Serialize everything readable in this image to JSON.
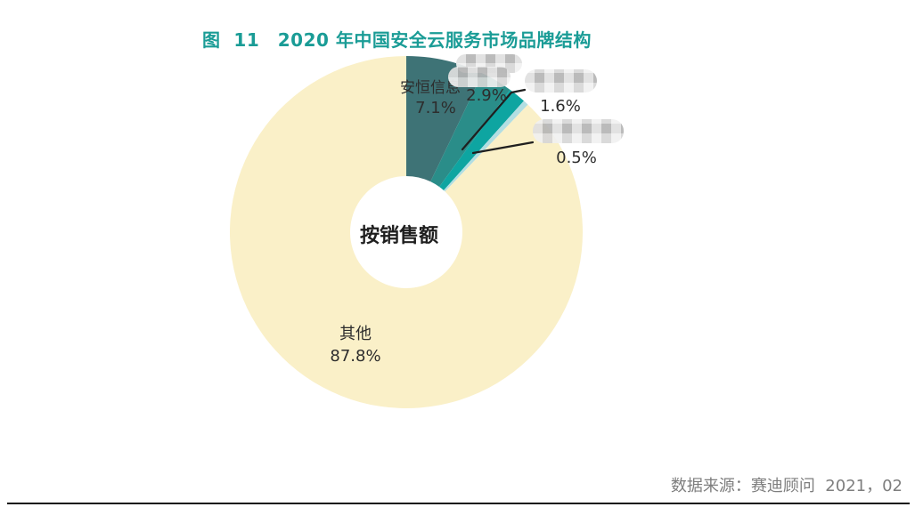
{
  "figure": {
    "title": "图  11　2020 年中国安全云服务市场品牌结构",
    "source": "数据来源：赛迪顾问  2021，02"
  },
  "chart_data": {
    "type": "pie",
    "subtype": "donut",
    "title": "2020 年中国安全云服务市场品牌结构",
    "center_label": "按销售额",
    "unit": "percent",
    "start_angle_deg": 0,
    "direction": "clockwise",
    "legend": "none",
    "slices": [
      {
        "name": "安恒信息",
        "value": 7.1,
        "label": "7.1%",
        "color": "#3E7376",
        "name_redacted": false
      },
      {
        "name": "",
        "value": 2.9,
        "label": "2.9%",
        "color": "#2A8D89",
        "name_redacted": true
      },
      {
        "name": "",
        "value": 1.6,
        "label": "1.6%",
        "color": "#0EA5A1",
        "name_redacted": true
      },
      {
        "name": "",
        "value": 0.5,
        "label": "0.5%",
        "color": "#B2DEE2",
        "name_redacted": true
      },
      {
        "name": "其他",
        "value": 87.8,
        "label": "87.8%",
        "color": "#FAF0C8",
        "name_redacted": false
      }
    ]
  },
  "colors": {
    "title_text": "#1A9C96",
    "label_text": "#2D2D2D",
    "source_text": "#7E7E7E",
    "leader_line": "#1F1F1F",
    "background": "#FFFFFF"
  }
}
